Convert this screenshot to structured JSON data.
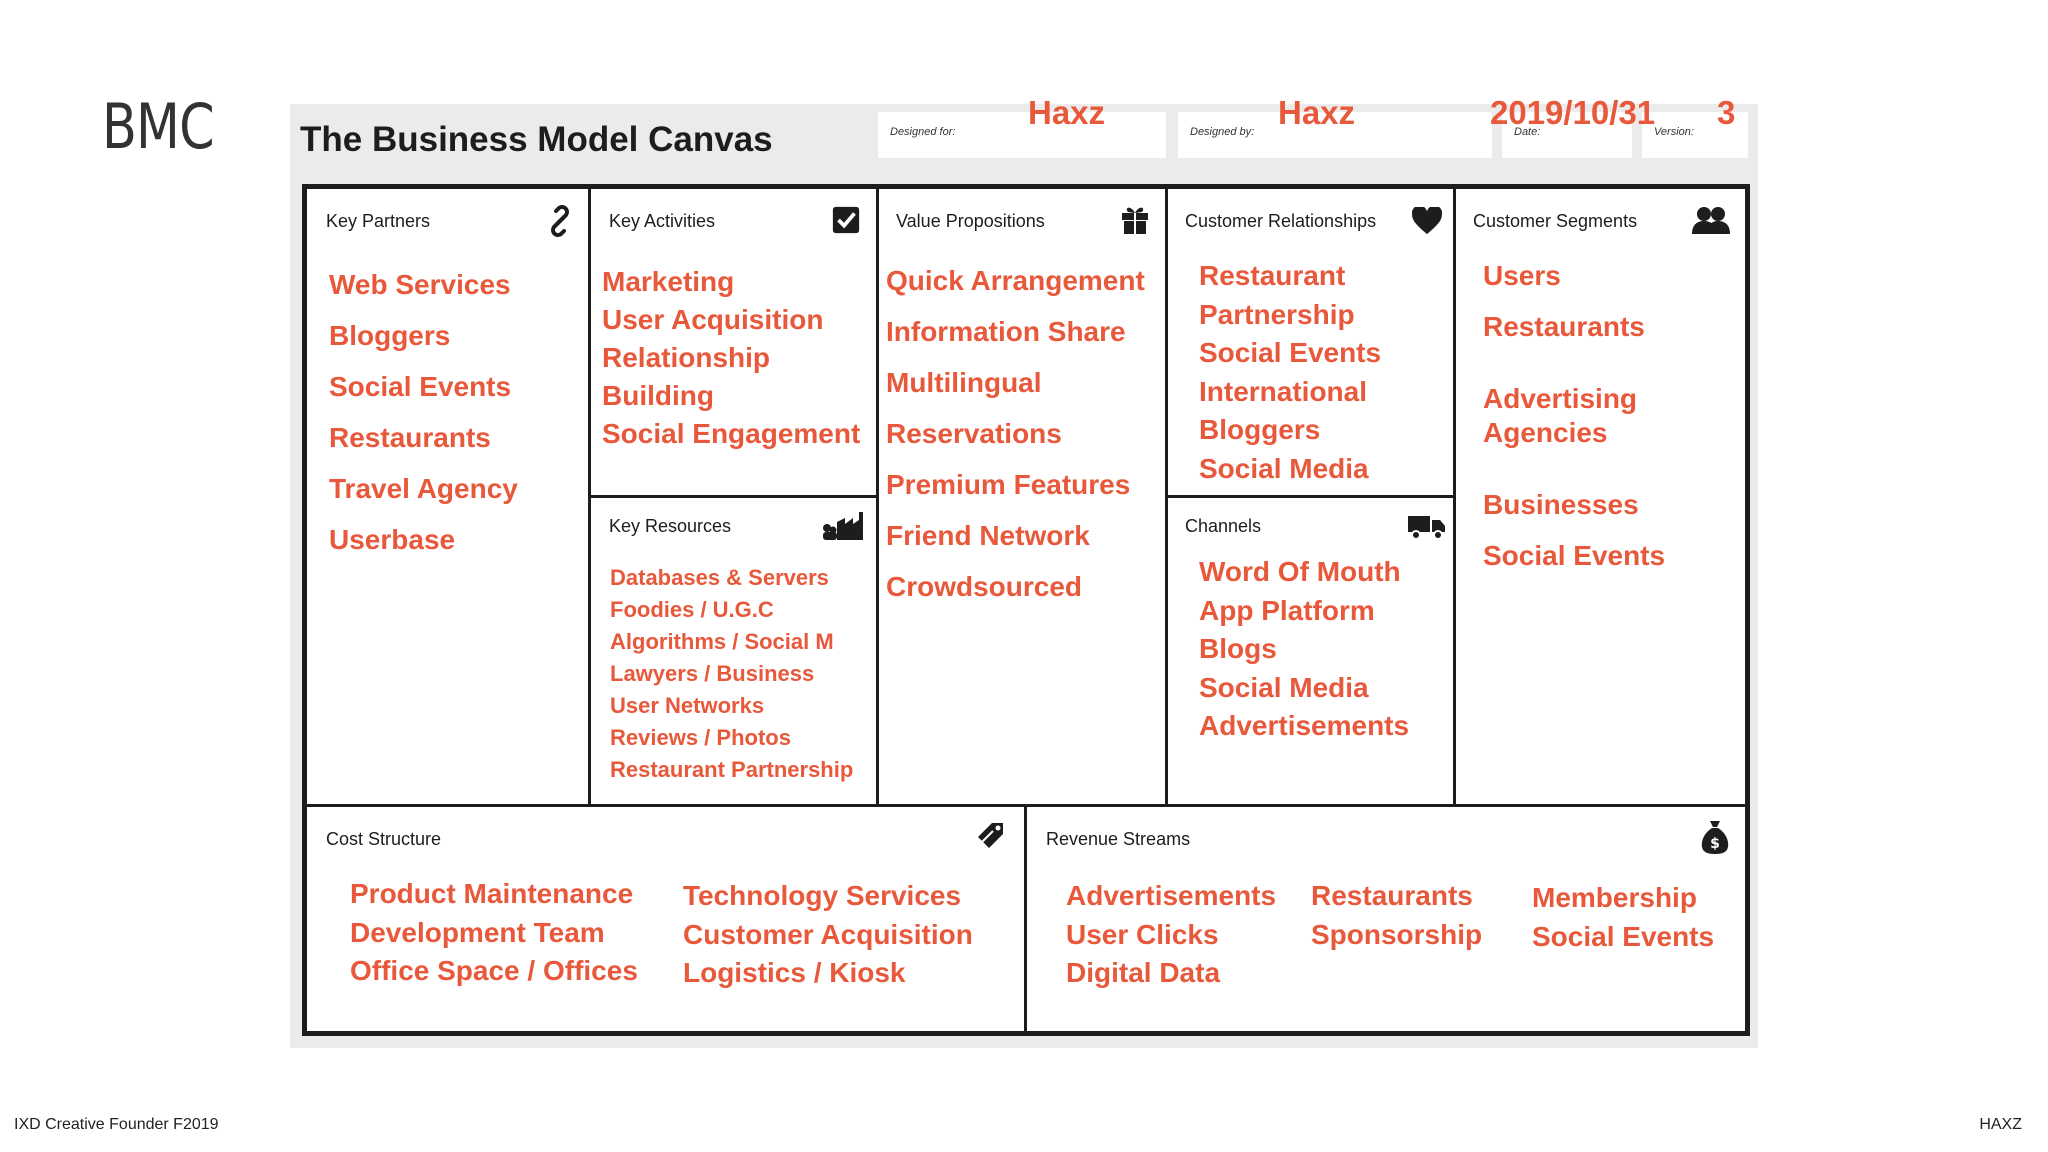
{
  "slide": {
    "title": "BMC",
    "footer_left": "IXD Creative Founder F2019",
    "footer_right": "HAXZ"
  },
  "canvas": {
    "heading": "The Business Model Canvas",
    "designed_for_label": "Designed for:",
    "designed_for_value": "Haxz",
    "designed_by_label": "Designed by:",
    "designed_by_value": "Haxz",
    "date_label": "Date:",
    "date_value": "2019/10/31",
    "version_label": "Version:",
    "version_value": "3"
  },
  "colors": {
    "accent": "#e8583b",
    "ink": "#1d1d1d",
    "frame": "#ebebeb"
  },
  "sections": {
    "key_partners": {
      "title": "Key Partners",
      "icon": "link-icon",
      "items": [
        "Web Services",
        "Bloggers",
        "Social Events",
        "Restaurants",
        "Travel Agency",
        "Userbase"
      ]
    },
    "key_activities": {
      "title": "Key Activities",
      "icon": "checkbox-icon",
      "items": [
        "Marketing",
        "User Acquisition",
        "Relationship",
        "Building",
        "Social Engagement"
      ]
    },
    "key_resources": {
      "title": "Key Resources",
      "icon": "factory-icon",
      "items": [
        "Databases & Servers",
        "Foodies / U.G.C",
        "Algorithms / Social M",
        "Lawyers / Business",
        "User Networks",
        "Reviews / Photos",
        "Restaurant Partnership"
      ]
    },
    "value_propositions": {
      "title": "Value Propositions",
      "icon": "gift-icon",
      "items": [
        "Quick Arrangement",
        "Information Share",
        "Multilingual",
        "Reservations",
        "Premium Features",
        "Friend Network",
        "Crowdsourced"
      ]
    },
    "customer_relationships": {
      "title": "Customer Relationships",
      "icon": "heart-icon",
      "items": [
        "Restaurant",
        "Partnership",
        "Social Events",
        "International",
        "Bloggers",
        "Social Media"
      ]
    },
    "channels": {
      "title": "Channels",
      "icon": "truck-icon",
      "items": [
        "Word Of Mouth",
        "App Platform",
        "Blogs",
        "Social Media",
        "Advertisements"
      ]
    },
    "customer_segments": {
      "title": "Customer Segments",
      "icon": "users-icon",
      "items": [
        "Users",
        "Restaurants",
        "Advertising",
        "Agencies",
        "Businesses",
        "Social Events"
      ]
    },
    "cost_structure": {
      "title": "Cost Structure",
      "icon": "tag-icon",
      "col1": [
        "Product Maintenance",
        "Development Team",
        "Office Space / Offices"
      ],
      "col2": [
        "Technology Services",
        "Customer Acquisition",
        "Logistics / Kiosk"
      ]
    },
    "revenue_streams": {
      "title": "Revenue Streams",
      "icon": "money-bag-icon",
      "col1": [
        "Advertisements",
        "User Clicks",
        "Digital Data"
      ],
      "col2": [
        "Restaurants",
        "Sponsorship"
      ],
      "col3": [
        "Membership",
        "Social Events"
      ]
    }
  }
}
